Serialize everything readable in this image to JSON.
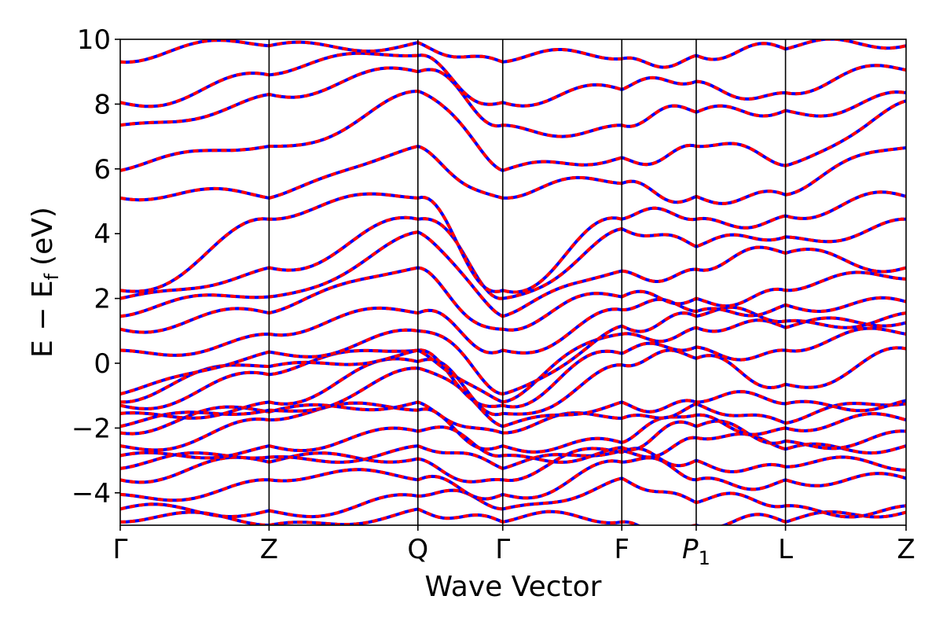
{
  "chart_data": {
    "type": "line",
    "title": "",
    "xlabel": "Wave Vector",
    "ylabel_main": "E − E",
    "ylabel_sub": "f",
    "ylabel_unit": "(eV)",
    "ylim": [
      -5,
      10
    ],
    "yticks": [
      10,
      8,
      6,
      4,
      2,
      0,
      -2,
      -4
    ],
    "ytick_labels": [
      "10",
      "8",
      "6",
      "4",
      "2",
      "0",
      "−2",
      "−4"
    ],
    "xticks": [
      {
        "label": "Γ",
        "sub": ""
      },
      {
        "label": "Z",
        "sub": ""
      },
      {
        "label": "Q",
        "sub": ""
      },
      {
        "label": "Γ",
        "sub": ""
      },
      {
        "label": "F",
        "sub": ""
      },
      {
        "label": "P",
        "sub": "1"
      },
      {
        "label": "L",
        "sub": ""
      },
      {
        "label": "Z",
        "sub": ""
      }
    ],
    "segment_lengths": [
      1.0,
      1.0,
      0.57,
      0.8,
      0.5,
      0.6,
      0.81
    ],
    "grid": false,
    "legend": "none",
    "series_colors": {
      "reference": "#0000ff",
      "overlay": "#ff0000"
    },
    "series_styles": {
      "reference": "solid",
      "overlay": "dashed"
    },
    "bands_at_high_symmetry_points": [
      [
        -4.9,
        -4.5,
        -4.05,
        -3.6,
        -3.25,
        -2.85,
        -2.55,
        -2.15,
        -1.95,
        -1.55,
        -1.3,
        -1.2,
        -0.95,
        0.4,
        1.05,
        1.45,
        2.0,
        2.25,
        5.1,
        5.95,
        7.35,
        8.05,
        9.3
      ],
      [
        -5.0,
        -4.55,
        -3.6,
        -3.05,
        -2.9,
        -2.55,
        -1.75,
        -1.5,
        -1.45,
        -1.2,
        -0.35,
        -0.1,
        0.35,
        0.9,
        1.55,
        2.05,
        2.95,
        4.45,
        5.1,
        6.7,
        8.3,
        8.9,
        9.8
      ],
      [
        -4.5,
        -4.1,
        -3.6,
        -2.95,
        -2.55,
        -2.1,
        -1.45,
        -1.2,
        -0.15,
        0.05,
        0.4,
        0.4,
        1.0,
        1.55,
        2.95,
        4.05,
        4.45,
        5.1,
        6.7,
        8.4,
        9.0,
        9.5,
        9.9
      ],
      [
        -4.9,
        -4.5,
        -4.05,
        -3.6,
        -3.25,
        -2.85,
        -2.55,
        -2.15,
        -1.95,
        -1.55,
        -1.3,
        -1.2,
        -0.95,
        0.4,
        1.05,
        1.45,
        2.0,
        2.25,
        5.1,
        5.95,
        7.35,
        8.05,
        9.3
      ],
      [
        -4.9,
        -3.55,
        -3.05,
        -2.75,
        -2.7,
        -2.6,
        -2.45,
        -1.7,
        -1.2,
        -0.05,
        0.3,
        0.9,
        1.15,
        1.65,
        2.05,
        2.85,
        4.15,
        4.45,
        5.55,
        6.35,
        7.35,
        8.45,
        9.4
      ],
      [
        -5.0,
        -4.3,
        -3.6,
        -3.0,
        -2.3,
        -1.95,
        -1.6,
        -1.25,
        -1.2,
        0.15,
        0.5,
        1.1,
        1.45,
        1.6,
        2.0,
        2.9,
        3.6,
        4.45,
        5.15,
        6.7,
        7.75,
        8.7,
        9.5
      ],
      [
        -4.9,
        -4.4,
        -3.6,
        -3.2,
        -2.65,
        -2.4,
        -2.0,
        -1.85,
        -1.25,
        -0.65,
        0.4,
        1.1,
        1.3,
        1.8,
        2.25,
        3.4,
        3.9,
        4.55,
        5.2,
        6.1,
        7.8,
        8.35,
        9.7
      ],
      [
        -4.6,
        -4.4,
        -3.55,
        -3.3,
        -2.55,
        -2.1,
        -1.75,
        -1.25,
        -1.15,
        0.45,
        0.9,
        1.25,
        1.55,
        1.9,
        2.6,
        2.95,
        4.45,
        5.15,
        6.65,
        8.1,
        8.35,
        9.05,
        9.8
      ]
    ]
  }
}
